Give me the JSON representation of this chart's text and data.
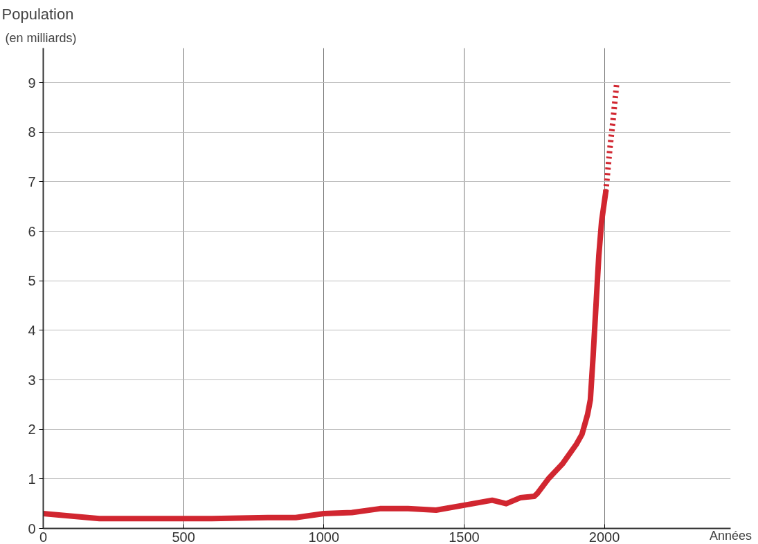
{
  "chart_data": {
    "type": "line",
    "title": "Population",
    "subtitle": "(en milliards)",
    "xlabel": "Années",
    "xlim": [
      0,
      2450
    ],
    "ylim": [
      0,
      9.7
    ],
    "xticks": [
      0,
      500,
      1000,
      1500,
      2000
    ],
    "yticks": [
      0,
      1,
      2,
      3,
      4,
      5,
      6,
      7,
      8,
      9
    ],
    "grid": true,
    "series": [
      {
        "color": "#d12630",
        "line_style": "solid",
        "x": [
          0,
          200,
          400,
          600,
          800,
          900,
          1000,
          1100,
          1200,
          1300,
          1400,
          1500,
          1600,
          1650,
          1700,
          1750,
          1760,
          1800,
          1850,
          1900,
          1920,
          1940,
          1950,
          1960,
          1970,
          1980,
          1990,
          2005
        ],
        "values": [
          0.3,
          0.2,
          0.2,
          0.2,
          0.22,
          0.22,
          0.3,
          0.32,
          0.4,
          0.4,
          0.37,
          0.47,
          0.57,
          0.5,
          0.62,
          0.65,
          0.7,
          1.0,
          1.3,
          1.7,
          1.9,
          2.3,
          2.6,
          3.5,
          4.5,
          5.5,
          6.2,
          6.8
        ]
      },
      {
        "color": "#d12630",
        "line_style": "dotted",
        "x": [
          2005,
          2020,
          2030,
          2044
        ],
        "values": [
          6.8,
          7.7,
          8.2,
          9.0
        ]
      }
    ]
  }
}
